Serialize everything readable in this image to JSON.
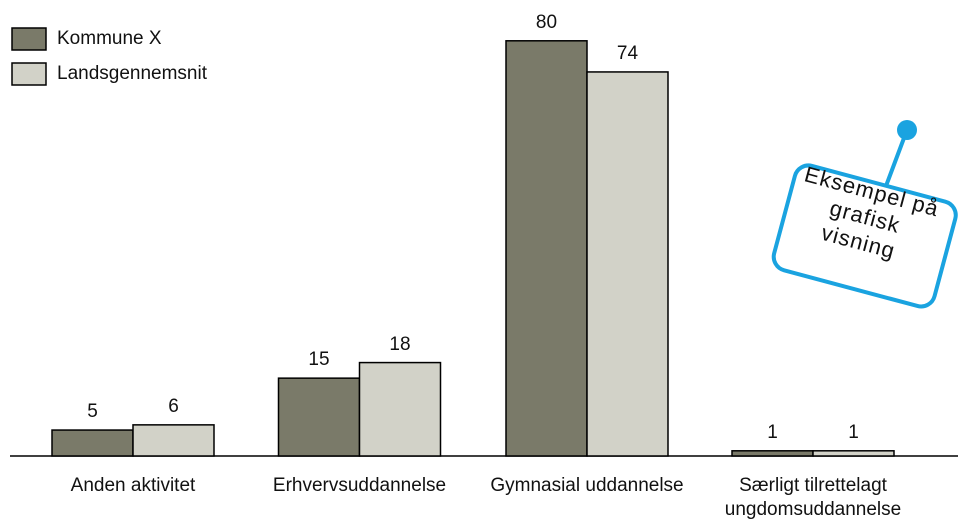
{
  "chart_data": {
    "type": "bar",
    "categories": [
      "Anden aktivitet",
      "Erhvervsuddannelse",
      "Gymnasial uddannelse",
      "Særligt tilrettelagt ungdomsuddannelse"
    ],
    "series": [
      {
        "name": "Kommune X",
        "color": "#7a7a69",
        "values": [
          5,
          15,
          80,
          1
        ]
      },
      {
        "name": "Landsgennemsnit",
        "color": "#d2d2c8",
        "values": [
          6,
          18,
          74,
          1
        ]
      }
    ],
    "annotation": "Eksempel på grafisk visning"
  }
}
